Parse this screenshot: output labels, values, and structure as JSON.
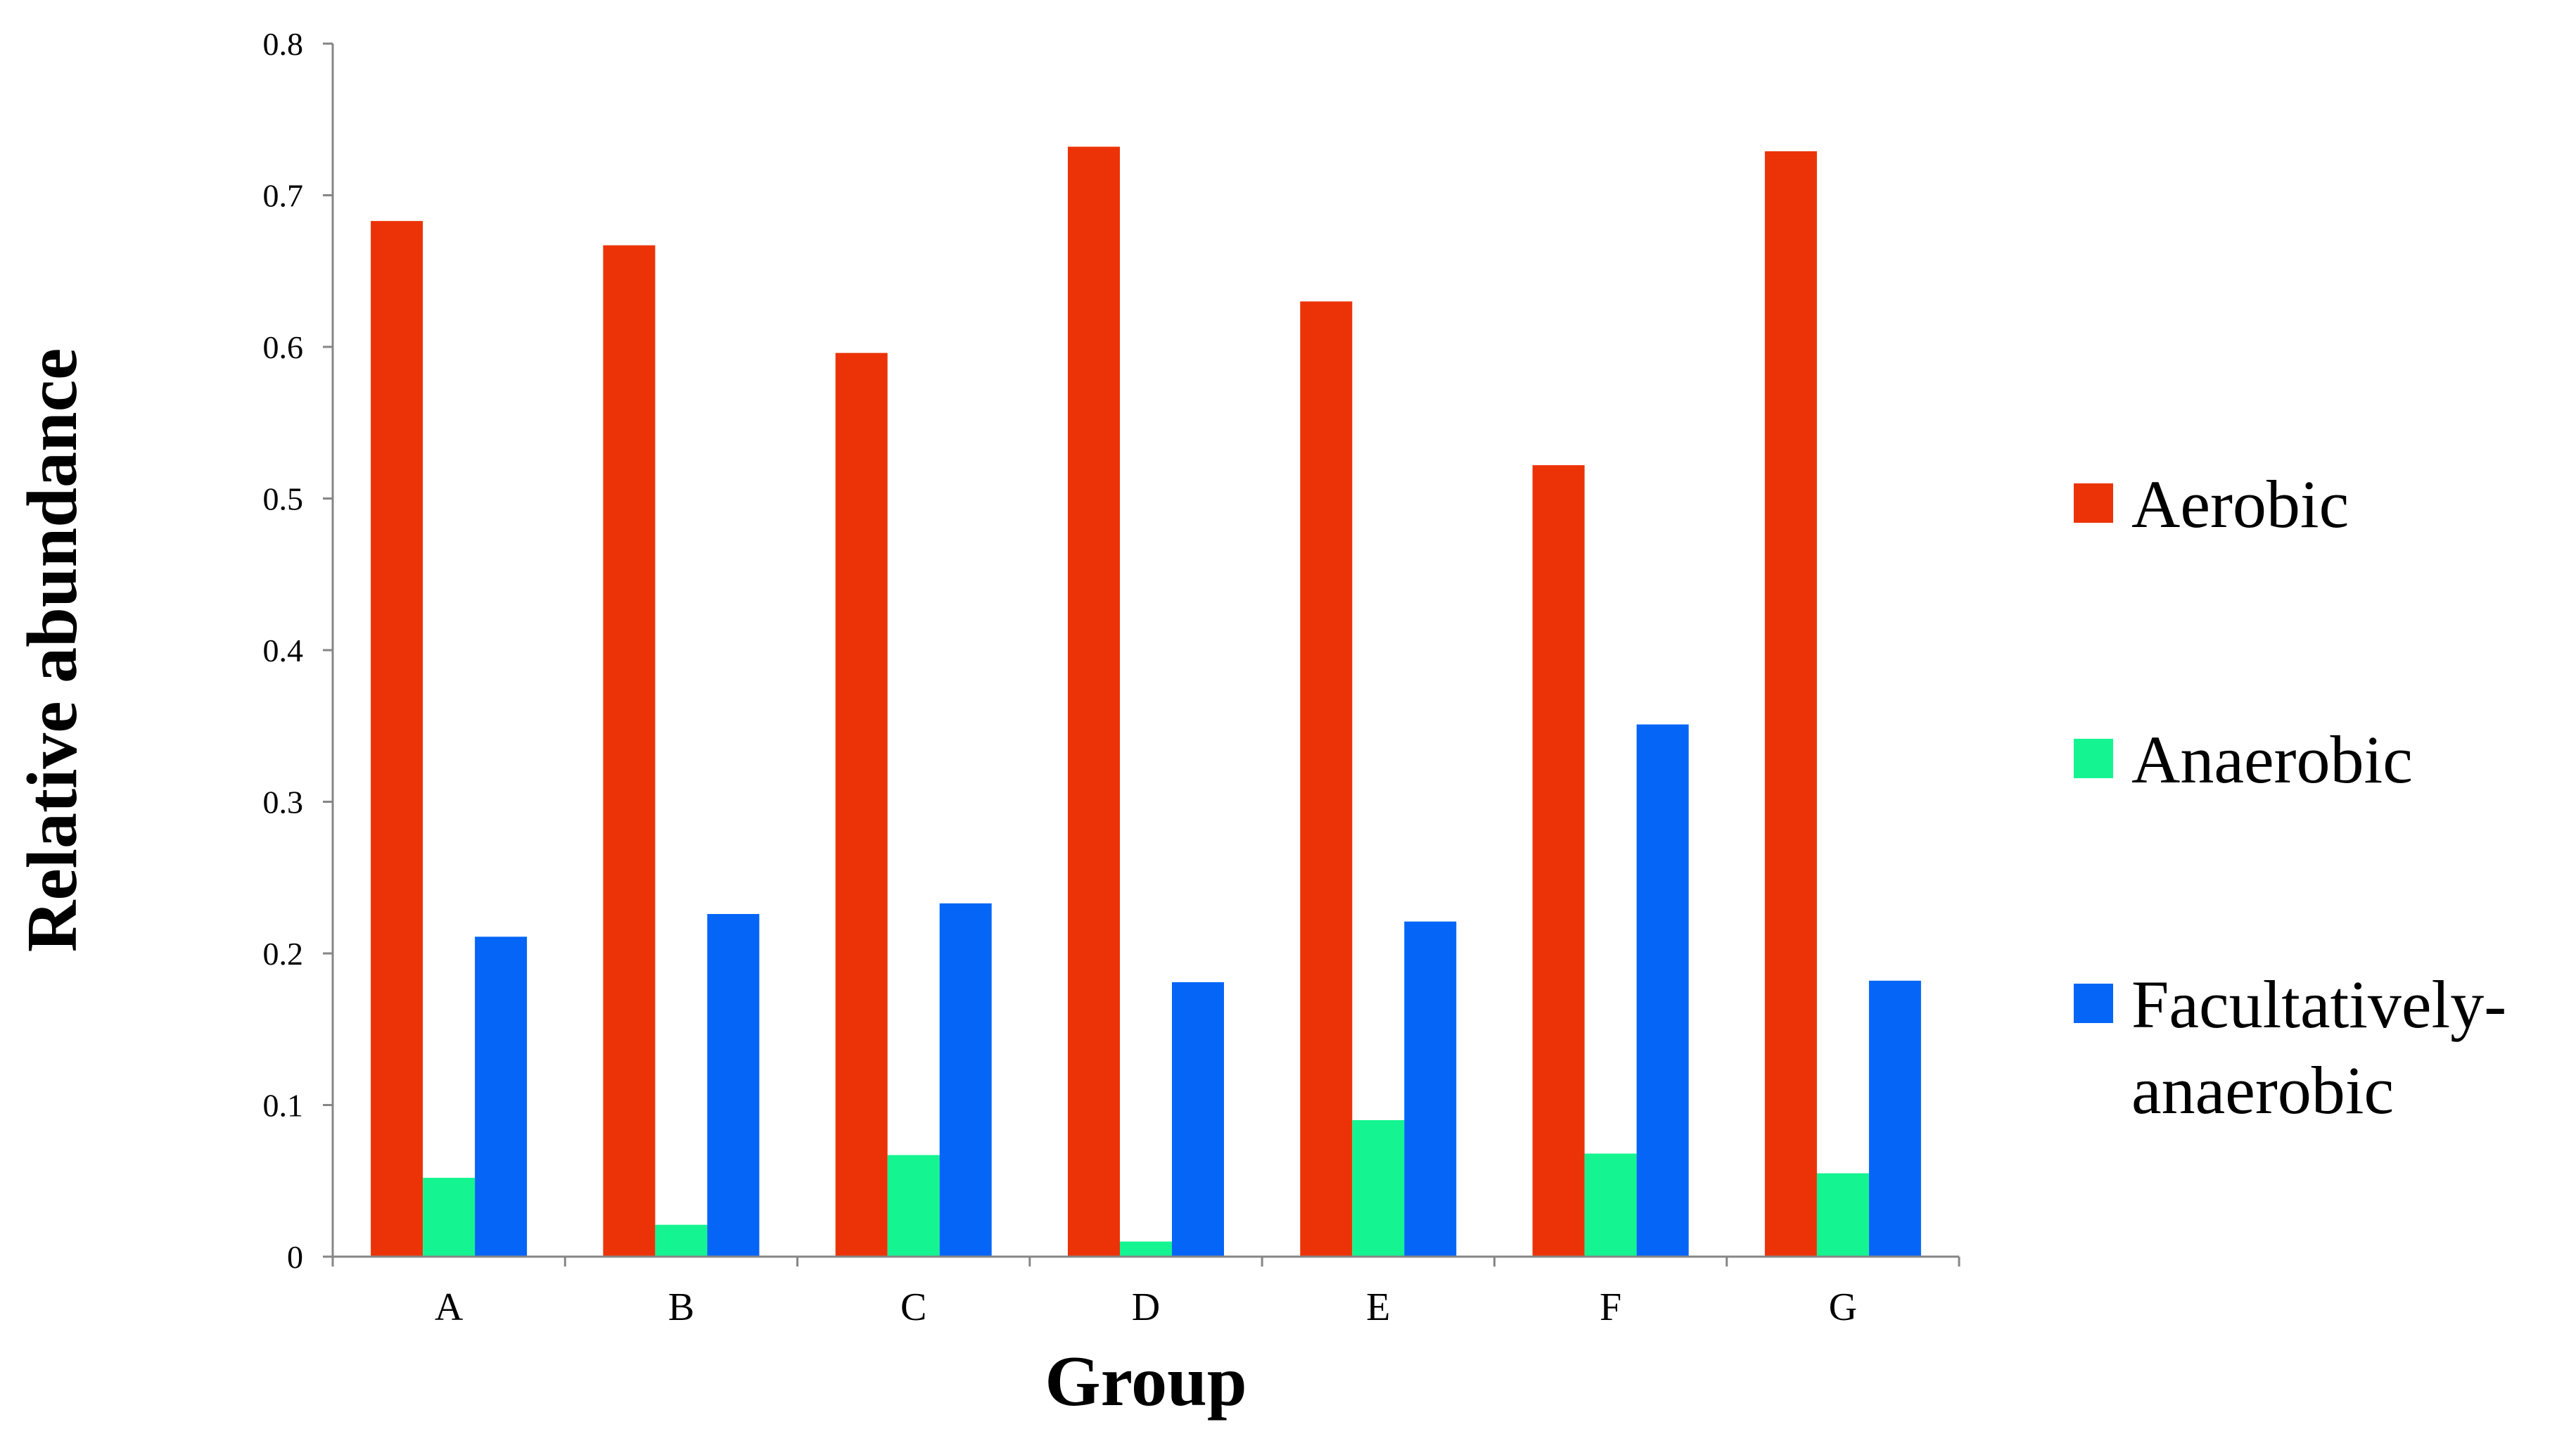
{
  "chart_data": {
    "type": "bar",
    "title": "",
    "xlabel": "Group",
    "ylabel": "Relative abundance",
    "categories": [
      "A",
      "B",
      "C",
      "D",
      "E",
      "F",
      "G"
    ],
    "series": [
      {
        "name": "Aerobic",
        "color": "#EC3307",
        "values": [
          0.683,
          0.667,
          0.596,
          0.732,
          0.63,
          0.522,
          0.729
        ]
      },
      {
        "name": "Anaerobic",
        "color": "#14F591",
        "values": [
          0.052,
          0.021,
          0.067,
          0.01,
          0.09,
          0.068,
          0.055
        ]
      },
      {
        "name": "Facultatively-anaerobic",
        "color": "#0565F7",
        "values": [
          0.211,
          0.226,
          0.233,
          0.181,
          0.221,
          0.351,
          0.182
        ]
      }
    ],
    "ylim": [
      0,
      0.8
    ],
    "yticks": [
      "0",
      "0.1",
      "0.2",
      "0.3",
      "0.4",
      "0.5",
      "0.6",
      "0.7",
      "0.8"
    ],
    "grid": false,
    "legend_position": "right",
    "legend_labels": [
      {
        "line1": "Aerobic",
        "line2": ""
      },
      {
        "line1": "Anaerobic",
        "line2": ""
      },
      {
        "line1": "Facultatively-",
        "line2": "anaerobic"
      }
    ]
  }
}
